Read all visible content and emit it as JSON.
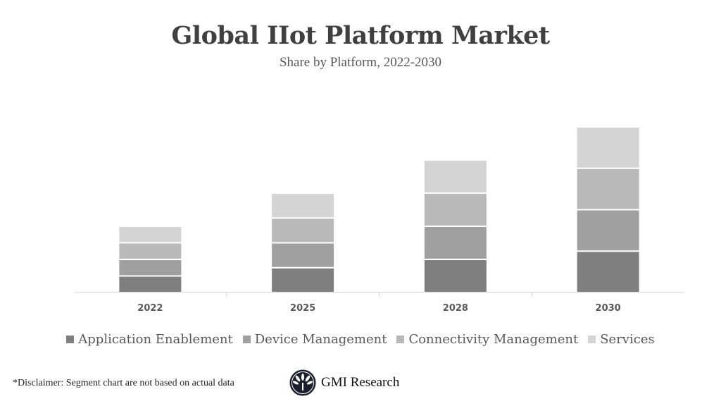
{
  "chart_data": {
    "type": "bar",
    "stacked": true,
    "title": "Global IIot Platform Market",
    "subtitle": "Share by Platform, 2022-2030",
    "categories": [
      "2022",
      "2025",
      "2028",
      "2030"
    ],
    "series": [
      {
        "name": "Application Enablement",
        "values": [
          2,
          3,
          4,
          5
        ],
        "color": "#7f7f7f"
      },
      {
        "name": "Device Management",
        "values": [
          2,
          3,
          4,
          5
        ],
        "color": "#a0a0a0"
      },
      {
        "name": "Connectivity Management",
        "values": [
          2,
          3,
          4,
          5
        ],
        "color": "#b9b9b9"
      },
      {
        "name": "Services",
        "values": [
          2,
          3,
          4,
          5
        ],
        "color": "#d4d4d4"
      }
    ],
    "xlabel": "",
    "ylabel": "",
    "ylim": [
      0,
      20
    ],
    "y_axis_visible": false,
    "grid": false,
    "legend_position": "bottom"
  },
  "footer": {
    "disclaimer": "*Disclaimer:  Segment chart are not based on actual data",
    "logo_text": "GMI Research"
  }
}
